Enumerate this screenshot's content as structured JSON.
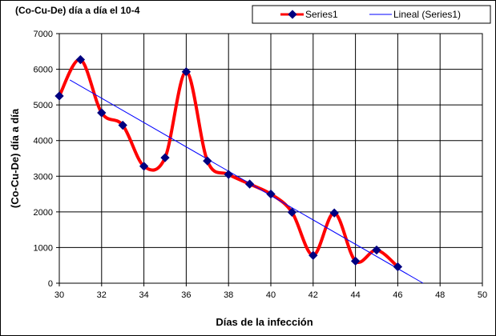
{
  "chart_data": {
    "type": "line",
    "title": "(Co-Cu-De)  día a día el 10-4",
    "xlabel": "Días de la infección",
    "ylabel": "(Co-Cu-De) día a día",
    "xlim": [
      30,
      50
    ],
    "ylim": [
      0,
      7000
    ],
    "x_ticks": [
      "30",
      "32",
      "34",
      "36",
      "38",
      "40",
      "42",
      "44",
      "46",
      "48",
      "50"
    ],
    "y_ticks": [
      "0",
      "1000",
      "2000",
      "3000",
      "4000",
      "5000",
      "6000",
      "7000"
    ],
    "grid": true,
    "legend_position": "top-right",
    "series": [
      {
        "name": "Series1",
        "color": "#ff0000",
        "marker_color": "#000080",
        "x": [
          30,
          31,
          32,
          33,
          34,
          35,
          36,
          37,
          38,
          39,
          40,
          41,
          42,
          43,
          44,
          45,
          46
        ],
        "y": [
          5250,
          6270,
          4780,
          4430,
          3280,
          3520,
          5930,
          3430,
          3050,
          2780,
          2500,
          1990,
          780,
          1970,
          620,
          930,
          460
        ]
      }
    ],
    "trendline": {
      "name": "Lineal (Series1)",
      "color": "#0000ff",
      "x": [
        30.5,
        47.2
      ],
      "y": [
        5700,
        0
      ]
    }
  }
}
